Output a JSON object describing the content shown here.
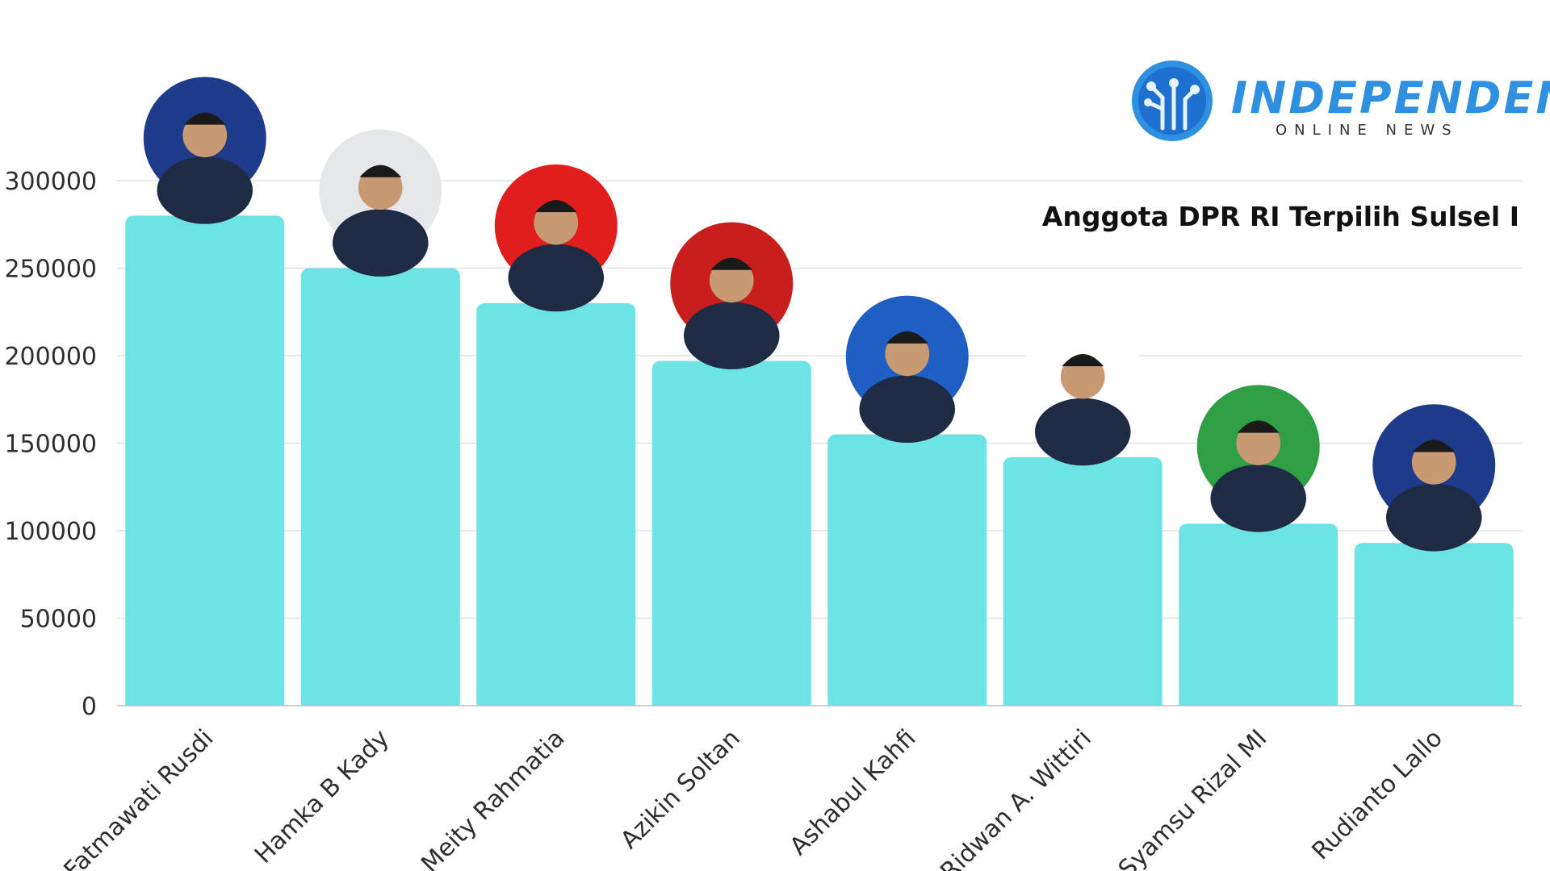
{
  "brand": {
    "name": "INDEPENDEN",
    "tagline": "ONLINE NEWS",
    "color": "#2f8fe0",
    "icon": "circuit-tree-icon"
  },
  "chart_data": {
    "type": "bar",
    "title": "Anggota DPR RI Terpilih Sulsel I",
    "xlabel": "",
    "ylabel": "",
    "ylim": [
      0,
      300000
    ],
    "yticks": [
      0,
      50000,
      100000,
      150000,
      200000,
      250000,
      300000
    ],
    "grid": true,
    "bar_color": "#6ce4e6",
    "categories": [
      "Fatmawati Rusdi",
      "Hamka B Kady",
      "Meity Rahmatia",
      "Azikin Soltan",
      "Ashabul Kahfi",
      "Ridwan A. Wittiri",
      "Syamsu Rizal MI",
      "Rudianto Lallo"
    ],
    "values": [
      280000,
      250000,
      230000,
      197000,
      155000,
      142000,
      104000,
      93000
    ],
    "portrait_backgrounds": [
      "#1e3a8a",
      "#e5e7eb",
      "#e11d1d",
      "#c81e1e",
      "#1f5fc4",
      "#ffffff",
      "#2f9e44",
      "#1e3a8a"
    ]
  }
}
